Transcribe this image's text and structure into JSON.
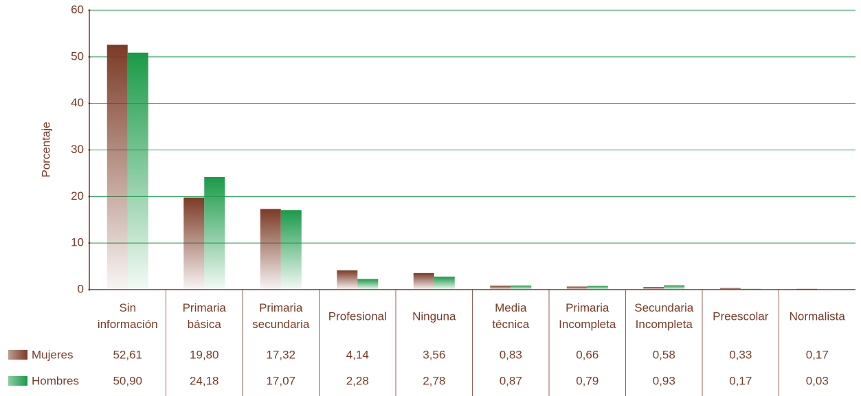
{
  "chart_data": {
    "type": "bar",
    "y_label": "Porcentaje",
    "categories": [
      "Sin información",
      "Primaria básica",
      "Primaria secundaria",
      "Profesional",
      "Ninguna",
      "Media técnica",
      "Primaria Incompleta",
      "Secundaria Incompleta",
      "Preescolar",
      "Normalista"
    ],
    "series": [
      {
        "name": "Mujeres",
        "color": "#7b3a26",
        "values": [
          52.61,
          19.8,
          17.32,
          4.14,
          3.56,
          0.83,
          0.66,
          0.58,
          0.33,
          0.17
        ],
        "value_labels": [
          "52,61",
          "19,80",
          "17,32",
          "4,14",
          "3,56",
          "0,83",
          "0,66",
          "0,58",
          "0,33",
          "0,17"
        ]
      },
      {
        "name": "Hombres",
        "color": "#1a9a48",
        "values": [
          50.9,
          24.18,
          17.07,
          2.28,
          2.78,
          0.87,
          0.79,
          0.93,
          0.17,
          0.03
        ],
        "value_labels": [
          "50,90",
          "24,18",
          "17,07",
          "2,28",
          "2,78",
          "0,87",
          "0,79",
          "0,93",
          "0,17",
          "0,03"
        ]
      }
    ],
    "ylim": [
      0,
      60
    ],
    "yticks": [
      0,
      10,
      20,
      30,
      40,
      50,
      60
    ],
    "grid": true
  }
}
